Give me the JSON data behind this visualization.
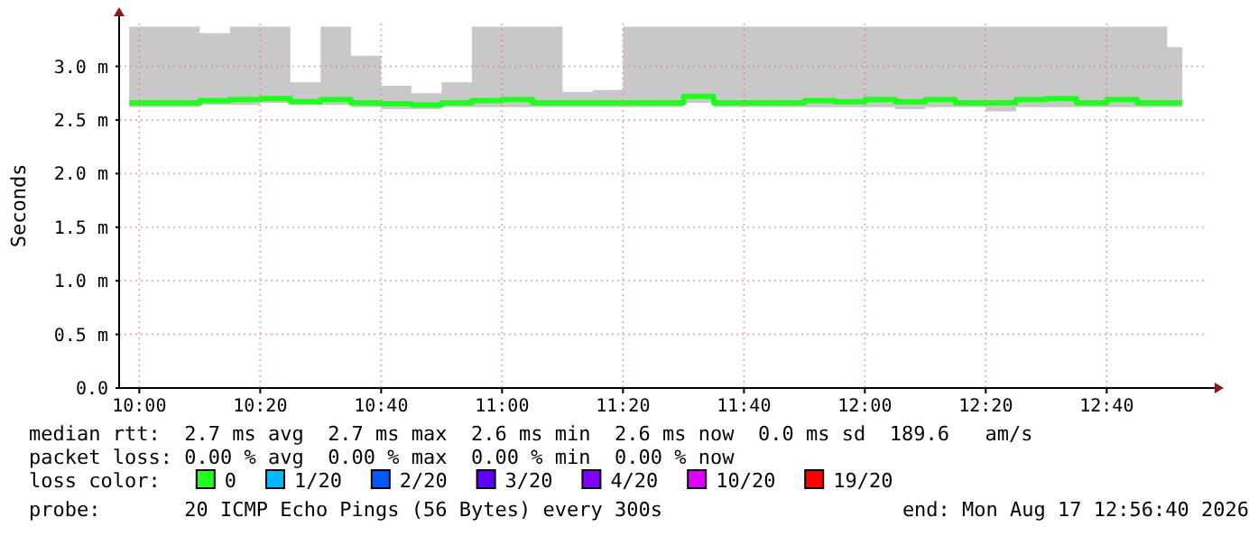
{
  "chart_data": {
    "type": "step",
    "ylabel": "Seconds",
    "legend_title": "loss color:",
    "legend": "bottom",
    "grid": true,
    "xlim": [
      9.9444,
      12.9444
    ],
    "xticks": [
      {
        "value": 10,
        "label": "10:00"
      },
      {
        "value": 10.3333,
        "label": "10:20"
      },
      {
        "value": 10.6667,
        "label": "10:40"
      },
      {
        "value": 11,
        "label": "11:00"
      },
      {
        "value": 11.3333,
        "label": "11:20"
      },
      {
        "value": 11.6667,
        "label": "11:40"
      },
      {
        "value": 12,
        "label": "12:00"
      },
      {
        "value": 12.3333,
        "label": "12:20"
      },
      {
        "value": 12.6667,
        "label": "12:40"
      }
    ],
    "ylim": [
      0,
      3.4
    ],
    "yticks": [
      {
        "value": 0,
        "label": "0.0"
      },
      {
        "value": 0.5,
        "label": "0.5 m"
      },
      {
        "value": 1,
        "label": "1.0 m"
      },
      {
        "value": 1.5,
        "label": "1.5 m"
      },
      {
        "value": 2,
        "label": "2.0 m"
      },
      {
        "value": 2.5,
        "label": "2.5 m"
      },
      {
        "value": 3,
        "label": "3.0 m"
      }
    ],
    "x": [
      9.9722,
      10.0417,
      10.125,
      10.2083,
      10.2917,
      10.375,
      10.4583,
      10.5417,
      10.625,
      10.7083,
      10.7917,
      10.875,
      10.9583,
      11.0417,
      11.125,
      11.2083,
      11.2917,
      11.375,
      11.4583,
      11.5417,
      11.625,
      11.7083,
      11.7917,
      11.875,
      11.9583,
      12.0417,
      12.125,
      12.2083,
      12.2917,
      12.375,
      12.4583,
      12.5417,
      12.625,
      12.7083,
      12.7917,
      12.875
    ],
    "series": [
      {
        "name": "0",
        "color": "#20ff20",
        "values": [
          2.66,
          2.66,
          2.66,
          2.68,
          2.69,
          2.7,
          2.67,
          2.69,
          2.66,
          2.65,
          2.64,
          2.66,
          2.68,
          2.69,
          2.66,
          2.66,
          2.66,
          2.66,
          2.66,
          2.72,
          2.66,
          2.66,
          2.66,
          2.68,
          2.67,
          2.69,
          2.67,
          2.69,
          2.66,
          2.66,
          2.69,
          2.7,
          2.66,
          2.69,
          2.66,
          2.66
        ],
        "lower": [
          2.62,
          2.62,
          2.62,
          2.64,
          2.64,
          2.66,
          2.64,
          2.64,
          2.62,
          2.6,
          2.6,
          2.62,
          2.62,
          2.62,
          2.62,
          2.62,
          2.62,
          2.62,
          2.62,
          2.66,
          2.62,
          2.62,
          2.62,
          2.62,
          2.62,
          2.62,
          2.6,
          2.62,
          2.62,
          2.58,
          2.62,
          2.62,
          2.62,
          2.62,
          2.62,
          2.62
        ],
        "upper": [
          3.37,
          3.37,
          3.37,
          3.31,
          3.37,
          3.37,
          2.85,
          3.37,
          3.1,
          2.82,
          2.75,
          2.85,
          3.37,
          3.37,
          3.37,
          2.76,
          2.78,
          3.37,
          3.37,
          3.37,
          3.37,
          3.37,
          3.37,
          3.37,
          3.37,
          3.37,
          3.37,
          3.37,
          3.37,
          3.37,
          3.37,
          3.37,
          3.37,
          3.37,
          3.37,
          3.18
        ]
      },
      {
        "name": "1/20",
        "color": "#00b8ff",
        "values": [
          null,
          null,
          null,
          null,
          null,
          null,
          null,
          null,
          null,
          null,
          null,
          null,
          null,
          null,
          null,
          null,
          null,
          null,
          null,
          null,
          null,
          null,
          null,
          null,
          null,
          null,
          null,
          null,
          null,
          null,
          null,
          null,
          null,
          null,
          null,
          null
        ]
      },
      {
        "name": "2/20",
        "color": "#0059ff",
        "values": [
          null,
          null,
          null,
          null,
          null,
          null,
          null,
          null,
          null,
          null,
          null,
          null,
          null,
          null,
          null,
          null,
          null,
          null,
          null,
          null,
          null,
          null,
          null,
          null,
          null,
          null,
          null,
          null,
          null,
          null,
          null,
          null,
          null,
          null,
          null,
          null
        ]
      },
      {
        "name": "3/20",
        "color": "#5e00ff",
        "values": [
          null,
          null,
          null,
          null,
          null,
          null,
          null,
          null,
          null,
          null,
          null,
          null,
          null,
          null,
          null,
          null,
          null,
          null,
          null,
          null,
          null,
          null,
          null,
          null,
          null,
          null,
          null,
          null,
          null,
          null,
          null,
          null,
          null,
          null,
          null,
          null
        ]
      },
      {
        "name": "4/20",
        "color": "#7e00ff",
        "values": [
          null,
          null,
          null,
          null,
          null,
          null,
          null,
          null,
          null,
          null,
          null,
          null,
          null,
          null,
          null,
          null,
          null,
          null,
          null,
          null,
          null,
          null,
          null,
          null,
          null,
          null,
          null,
          null,
          null,
          null,
          null,
          null,
          null,
          null,
          null,
          null
        ]
      },
      {
        "name": "10/20",
        "color": "#dd00ff",
        "values": [
          null,
          null,
          null,
          null,
          null,
          null,
          null,
          null,
          null,
          null,
          null,
          null,
          null,
          null,
          null,
          null,
          null,
          null,
          null,
          null,
          null,
          null,
          null,
          null,
          null,
          null,
          null,
          null,
          null,
          null,
          null,
          null,
          null,
          null,
          null,
          null
        ]
      },
      {
        "name": "19/20",
        "color": "#ff0000",
        "values": [
          null,
          null,
          null,
          null,
          null,
          null,
          null,
          null,
          null,
          null,
          null,
          null,
          null,
          null,
          null,
          null,
          null,
          null,
          null,
          null,
          null,
          null,
          null,
          null,
          null,
          null,
          null,
          null,
          null,
          null,
          null,
          null,
          null,
          null,
          null,
          null
        ]
      }
    ],
    "annotations": [
      "median rtt:  2.7 ms avg  2.7 ms max  2.6 ms min  2.6 ms now  0.0 ms sd  189.6   am/s",
      "packet loss: 0.00 % avg  0.00 % max  0.00 % min  0.00 % now",
      "probe:       20 ICMP Echo Pings (56 Bytes) every 300s",
      "end: Mon Aug 17 12:56:40 2026"
    ]
  }
}
